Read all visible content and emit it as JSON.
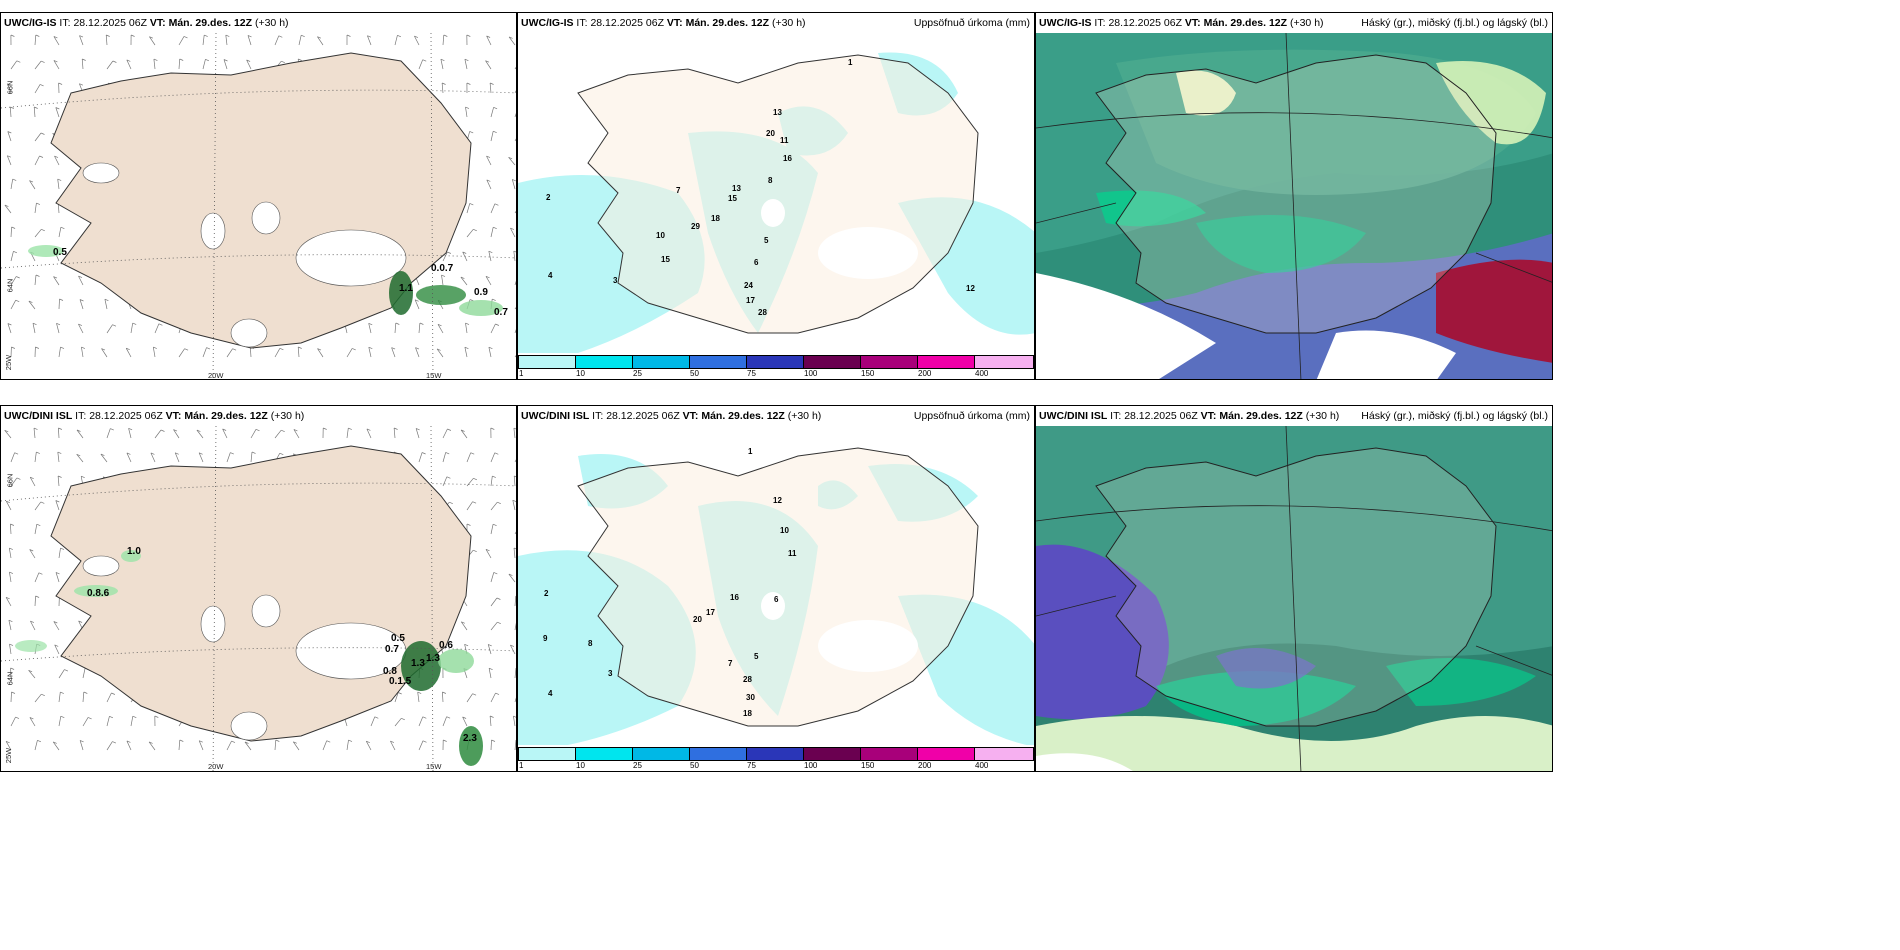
{
  "rows": [
    {
      "source": "UWC/IG-IS",
      "it_label": "IT:",
      "it_value": "28.12.2025 06Z",
      "vt_label": "VT:",
      "vt_value": "Mán. 29.des. 12Z",
      "lead": "(+30 h)"
    },
    {
      "source": "UWC/DINI ISL",
      "it_label": "IT:",
      "it_value": "28.12.2025 06Z",
      "vt_label": "VT:",
      "vt_value": "Mán. 29.des. 12Z",
      "lead": "(+30 h)"
    }
  ],
  "precip_title": "Uppsöfnuð úrkoma (mm)",
  "cloud_title": "Háský (gr.), miðský (fj.bl.) og lágský (bl.)",
  "axis_labels": {
    "lat66": "66N",
    "lat64": "64N",
    "lat65": "65N",
    "lon20": "20W",
    "lon15": "15W",
    "lon25": "25W"
  },
  "colorbar": {
    "ticks": [
      "1",
      "10",
      "25",
      "50",
      "75",
      "100",
      "150",
      "200",
      "400"
    ],
    "colors": [
      "#b9f6f6",
      "#00e5ee",
      "#00b8e6",
      "#2f6fe0",
      "#2a36b8",
      "#6a0050",
      "#a8007a",
      "#f000a8",
      "#f6b0f0"
    ]
  },
  "wind_labels_top": [
    "0.5",
    "0.0.7",
    "1.1",
    "0.9",
    "0.7"
  ],
  "wind_labels_bottom": [
    "1.0",
    "0.8.6",
    "0.5",
    "0.7",
    "1.3",
    "0.6",
    "0.8",
    "0.1.5",
    "1.3",
    "2.3"
  ],
  "precip_labels_top": [
    "13",
    "20",
    "11",
    "16",
    "13",
    "15",
    "18",
    "29",
    "10",
    "15",
    "24",
    "17",
    "28",
    "12",
    "8",
    "7",
    "6",
    "5",
    "4",
    "3",
    "2",
    "1"
  ],
  "precip_labels_bottom": [
    "12",
    "10",
    "11",
    "16",
    "20",
    "17",
    "28",
    "30",
    "18",
    "9",
    "8",
    "7",
    "6",
    "5",
    "4",
    "3",
    "2",
    "1"
  ]
}
